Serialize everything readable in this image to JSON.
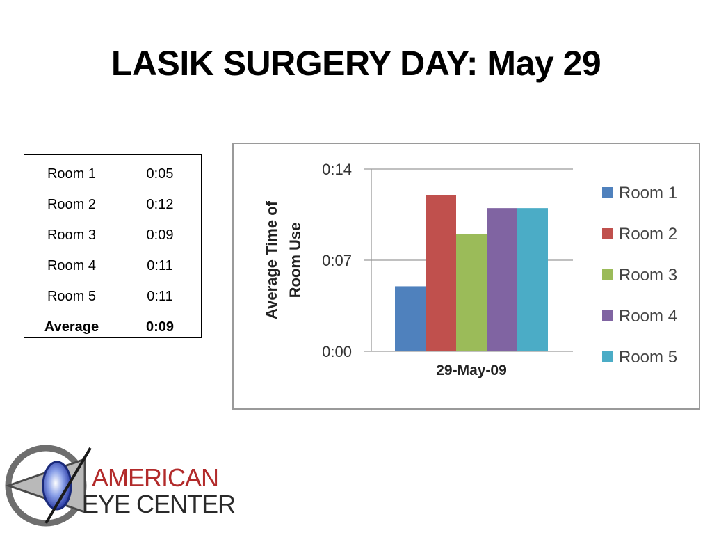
{
  "slide": {
    "title": "LASIK SURGERY DAY: May 29"
  },
  "table": {
    "rows": [
      {
        "room": "Room 1",
        "time": "0:05"
      },
      {
        "room": "Room 2",
        "time": "0:12"
      },
      {
        "room": "Room 3",
        "time": "0:09"
      },
      {
        "room": "Room 4",
        "time": "0:11"
      },
      {
        "room": "Room 5",
        "time": "0:11"
      }
    ],
    "average_label": "Average",
    "average_value": "0:09"
  },
  "logo": {
    "line1": "AMERICAN",
    "line2": "EYE CENTER"
  },
  "chart_data": {
    "type": "bar",
    "categories": [
      "29-May-09"
    ],
    "series": [
      {
        "name": "Room 1",
        "values": [
          5
        ],
        "color": "#4f81bd"
      },
      {
        "name": "Room 2",
        "values": [
          12
        ],
        "color": "#c0504d"
      },
      {
        "name": "Room 3",
        "values": [
          9
        ],
        "color": "#9bbb59"
      },
      {
        "name": "Room 4",
        "values": [
          11
        ],
        "color": "#8064a2"
      },
      {
        "name": "Room 5",
        "values": [
          11
        ],
        "color": "#4bacc6"
      }
    ],
    "ylabel": "Average Time of Room Use",
    "xlabel": "",
    "ylim": [
      0,
      14
    ],
    "yticks": [
      0,
      7,
      14
    ],
    "ytick_labels": [
      "0:00",
      "0:07",
      "0:14"
    ],
    "grid": true,
    "legend": "right"
  }
}
